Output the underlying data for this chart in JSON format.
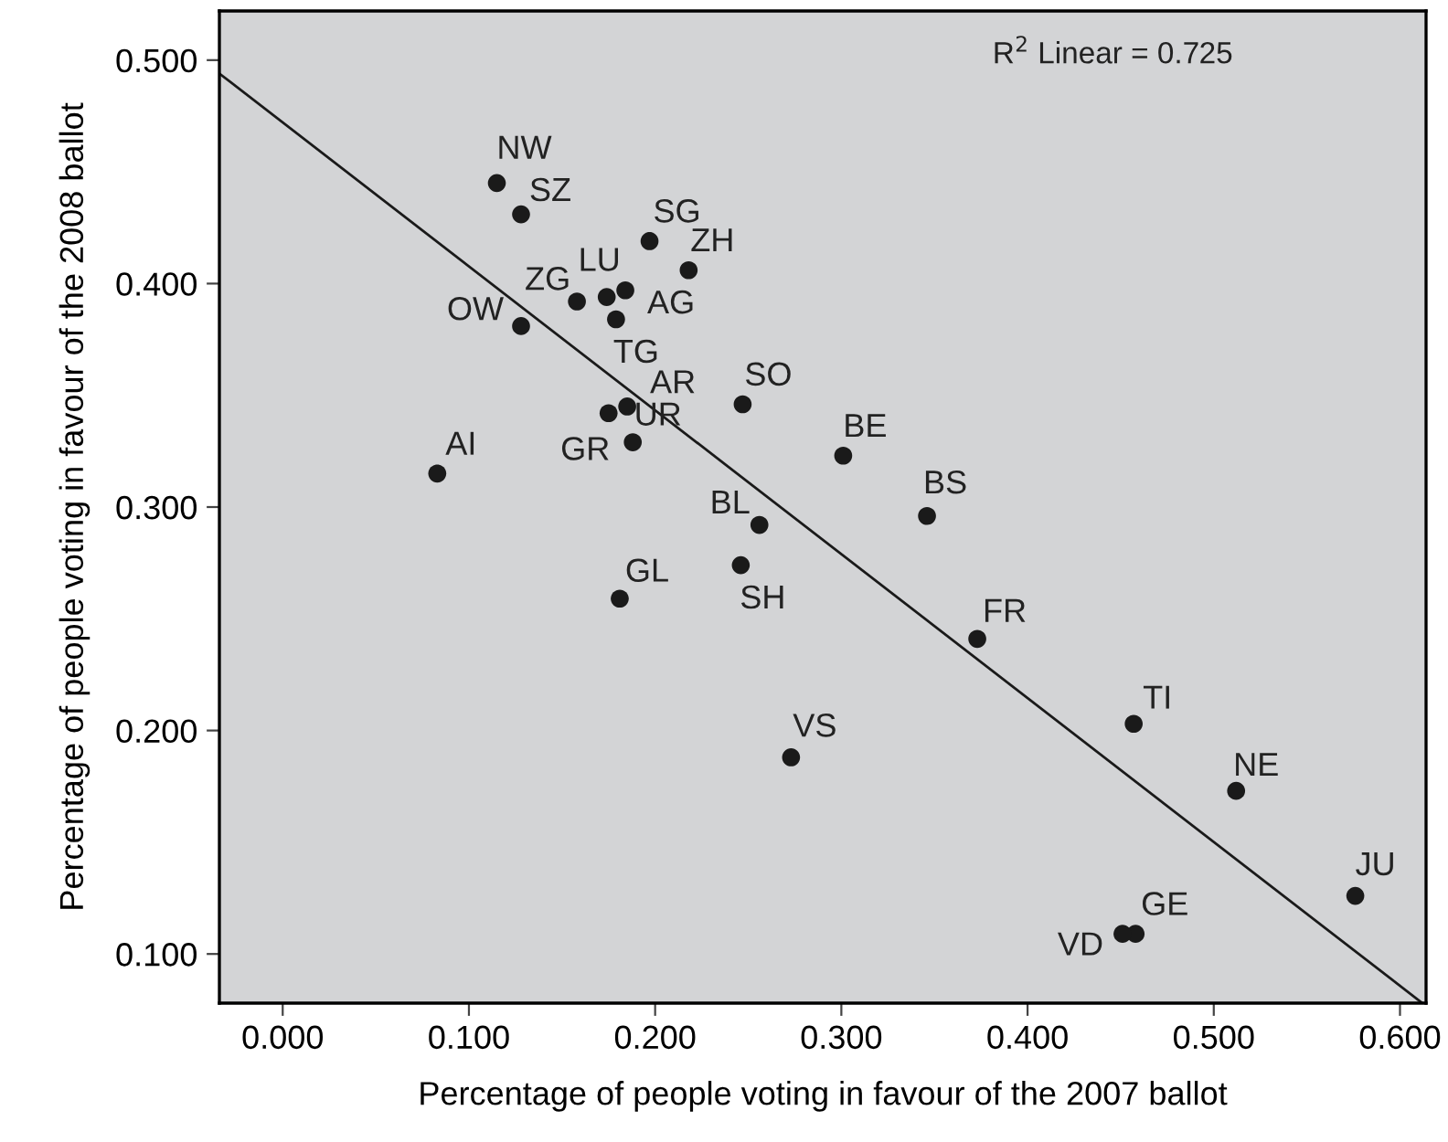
{
  "chart_data": {
    "type": "scatter",
    "xlabel": "Percentage of people voting in favour of the 2007 ballot",
    "ylabel": "Percentage of people voting in favour of the 2008 ballot",
    "xlim": [
      -0.034,
      0.614
    ],
    "ylim": [
      0.078,
      0.522
    ],
    "xticks": [
      {
        "value": 0,
        "label": "0.000"
      },
      {
        "value": 0.1,
        "label": "0.100"
      },
      {
        "value": 0.2,
        "label": "0.200"
      },
      {
        "value": 0.3,
        "label": "0.300"
      },
      {
        "value": 0.4,
        "label": "0.400"
      },
      {
        "value": 0.5,
        "label": "0.500"
      },
      {
        "value": 0.6,
        "label": "0.600"
      }
    ],
    "yticks": [
      {
        "value": 0.1,
        "label": "0.100"
      },
      {
        "value": 0.2,
        "label": "0.200"
      },
      {
        "value": 0.3,
        "label": "0.300"
      },
      {
        "value": 0.4,
        "label": "0.400"
      },
      {
        "value": 0.5,
        "label": "0.500"
      }
    ],
    "grid": false,
    "marker": "circle",
    "series": [
      {
        "color": "#1a1a1a",
        "x": [
          0.115,
          0.128,
          0.197,
          0.218,
          0.174,
          0.184,
          0.158,
          0.179,
          0.128,
          0.185,
          0.175,
          0.188,
          0.247,
          0.301,
          0.083,
          0.256,
          0.181,
          0.246,
          0.273,
          0.346,
          0.373,
          0.457,
          0.512,
          0.576,
          0.458,
          0.451
        ],
        "values": [
          0.445,
          0.431,
          0.419,
          0.406,
          0.394,
          0.397,
          0.392,
          0.384,
          0.381,
          0.345,
          0.342,
          0.329,
          0.346,
          0.323,
          0.315,
          0.292,
          0.259,
          0.274,
          0.188,
          0.296,
          0.241,
          0.203,
          0.173,
          0.126,
          0.109,
          0.109
        ]
      },
      {
        "type": "line",
        "color": "#1a1a1a",
        "x": [
          -0.034,
          0.612
        ],
        "values": [
          0.494,
          0.078
        ],
        "line_style": "solid",
        "marker": "none"
      }
    ],
    "annotations": [
      {
        "text": "NW",
        "x": 0.115,
        "y": 0.445
      },
      {
        "text": "SZ",
        "x": 0.128,
        "y": 0.431
      },
      {
        "text": "SG",
        "x": 0.197,
        "y": 0.419
      },
      {
        "text": "ZH",
        "x": 0.218,
        "y": 0.406
      },
      {
        "text": "LU",
        "x": 0.174,
        "y": 0.394
      },
      {
        "text": "AG",
        "x": 0.184,
        "y": 0.397
      },
      {
        "text": "ZG",
        "x": 0.158,
        "y": 0.392
      },
      {
        "text": "TG",
        "x": 0.179,
        "y": 0.384
      },
      {
        "text": "OW",
        "x": 0.128,
        "y": 0.381
      },
      {
        "text": "AR",
        "x": 0.185,
        "y": 0.345
      },
      {
        "text": "UR",
        "x": 0.175,
        "y": 0.342
      },
      {
        "text": "GR",
        "x": 0.188,
        "y": 0.329
      },
      {
        "text": "SO",
        "x": 0.247,
        "y": 0.346
      },
      {
        "text": "BE",
        "x": 0.301,
        "y": 0.323
      },
      {
        "text": "AI",
        "x": 0.083,
        "y": 0.315
      },
      {
        "text": "BL",
        "x": 0.256,
        "y": 0.292
      },
      {
        "text": "GL",
        "x": 0.181,
        "y": 0.259
      },
      {
        "text": "SH",
        "x": 0.246,
        "y": 0.274
      },
      {
        "text": "VS",
        "x": 0.273,
        "y": 0.188
      },
      {
        "text": "BS",
        "x": 0.346,
        "y": 0.296
      },
      {
        "text": "FR",
        "x": 0.373,
        "y": 0.241
      },
      {
        "text": "TI",
        "x": 0.457,
        "y": 0.203
      },
      {
        "text": "NE",
        "x": 0.512,
        "y": 0.173
      },
      {
        "text": "JU",
        "x": 0.576,
        "y": 0.126
      },
      {
        "text": "GE",
        "x": 0.458,
        "y": 0.109
      },
      {
        "text": "VD",
        "x": 0.451,
        "y": 0.109
      },
      "R$^{2}$ Linear = 0.725"
    ]
  }
}
